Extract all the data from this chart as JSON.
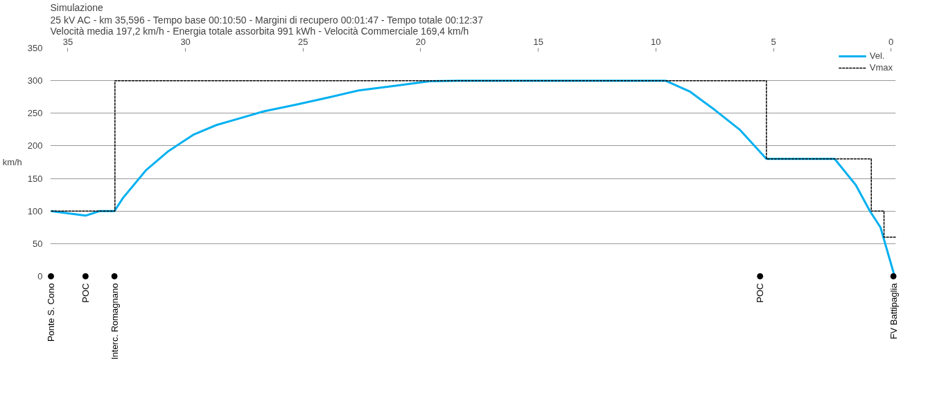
{
  "chart_data": {
    "type": "line",
    "title": "Simulazione",
    "subtitle": "25 kV AC  -  km 35,596  -  Tempo base 00:10:50  -  Margini di recupero 00:01:47  -  Tempo totale 00:12:37\nVelocità media 197,2 km/h  -  Energia totale assorbita 991 kWh  -  Velocità Commerciale 169,4 km/h",
    "ylabel": "km/h",
    "xlim": [
      35.75,
      -0.2
    ],
    "xticks": [
      35,
      30,
      25,
      20,
      15,
      10,
      5,
      0
    ],
    "ylim": [
      0,
      350
    ],
    "yticks": [
      0,
      50,
      100,
      150,
      200,
      250,
      300,
      350
    ],
    "grid": "y",
    "legend": "top right",
    "series": [
      {
        "name": "Vel.",
        "color": "#00b0f0",
        "line_style": "solid",
        "x": [
          35.72,
          34.25,
          33.65,
          33.02,
          32.66,
          31.67,
          30.72,
          29.67,
          28.68,
          27.72,
          26.67,
          25.32,
          23.83,
          22.63,
          21.13,
          19.63,
          18.43,
          9.59,
          8.54,
          7.49,
          6.44,
          5.3,
          2.4,
          1.5,
          0.9,
          0.45,
          -0.15
        ],
        "values": [
          100,
          93,
          100,
          100,
          120,
          163,
          192,
          217,
          232,
          242,
          253,
          263,
          275,
          285,
          292,
          299,
          300,
          300,
          283,
          255,
          225,
          180,
          180,
          140,
          100,
          75,
          0
        ]
      },
      {
        "name": "Vmax",
        "color": "#000000",
        "line_style": "dashed",
        "x": [
          35.72,
          33.0,
          33.0,
          5.3,
          5.3,
          0.84,
          0.84,
          0.3,
          0.3,
          -0.2
        ],
        "values": [
          100,
          100,
          300,
          300,
          180,
          180,
          100,
          100,
          60,
          60
        ]
      },
      {
        "type": "scatter",
        "color": "#000000",
        "marker": "circle",
        "x": [
          35.72,
          34.25,
          33.02,
          5.57,
          -0.1
        ],
        "values": [
          0,
          0,
          0,
          0,
          0
        ]
      }
    ],
    "annotations": [
      {
        "text": "Ponte S. Cono",
        "x": 35.72,
        "y": 0
      },
      {
        "text": "POC",
        "x": 34.25,
        "y": 0
      },
      {
        "text": "Interc. Romagnano",
        "x": 33.02,
        "y": 0
      },
      {
        "text": "POC",
        "x": 5.57,
        "y": 0
      },
      {
        "text": "FV Battipaglia",
        "x": -0.1,
        "y": 0
      }
    ]
  }
}
